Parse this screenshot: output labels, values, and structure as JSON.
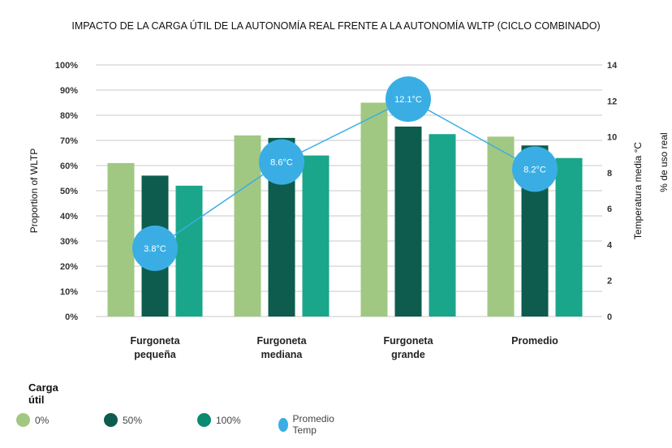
{
  "chart_data": {
    "type": "bar",
    "title": "IMPACTO DE LA CARGA ÚTIL DE LA AUTONOMÍA REAL FRENTE A LA AUTONOMÍA WLTP (CICLO COMBINADO)",
    "categories": [
      [
        "Furgoneta",
        "pequeña"
      ],
      [
        "Furgoneta",
        "mediana"
      ],
      [
        "Furgoneta",
        "grande"
      ],
      [
        "Promedio"
      ]
    ],
    "series": [
      {
        "name": "0%",
        "type": "bar",
        "axis": "left",
        "color": "#A0C882",
        "values": [
          61,
          72,
          85,
          71.5
        ]
      },
      {
        "name": "50%",
        "type": "bar",
        "axis": "left",
        "color": "#0D5C4D",
        "values": [
          56,
          71,
          75.5,
          68
        ]
      },
      {
        "name": "100%",
        "type": "bar",
        "axis": "left",
        "color": "#1AA68A",
        "values": [
          52,
          64,
          72.5,
          63
        ]
      },
      {
        "name": "Promedio Temp",
        "type": "line",
        "axis": "right",
        "color": "#3AAEE4",
        "values": [
          3.8,
          8.6,
          12.1,
          8.2
        ],
        "labels": [
          "3.8°C",
          "8.6°C",
          "12.1°C",
          "8.2°C"
        ]
      }
    ],
    "ylabel": "Proportion of WLTP",
    "ylim": [
      0,
      100
    ],
    "yticks": [
      "0%",
      "10%",
      "20%",
      "30%",
      "40%",
      "50%",
      "60%",
      "70%",
      "80%",
      "90%",
      "100%"
    ],
    "y2label": "Temperatura media °C",
    "y2label_outer": "% de uso real",
    "y2lim": [
      0,
      14
    ],
    "y2ticks": [
      "0",
      "2",
      "4",
      "6",
      "8",
      "10",
      "12",
      "14"
    ],
    "grid": true,
    "legend_title": "Carga útil",
    "legend_position": "bottom-left"
  }
}
